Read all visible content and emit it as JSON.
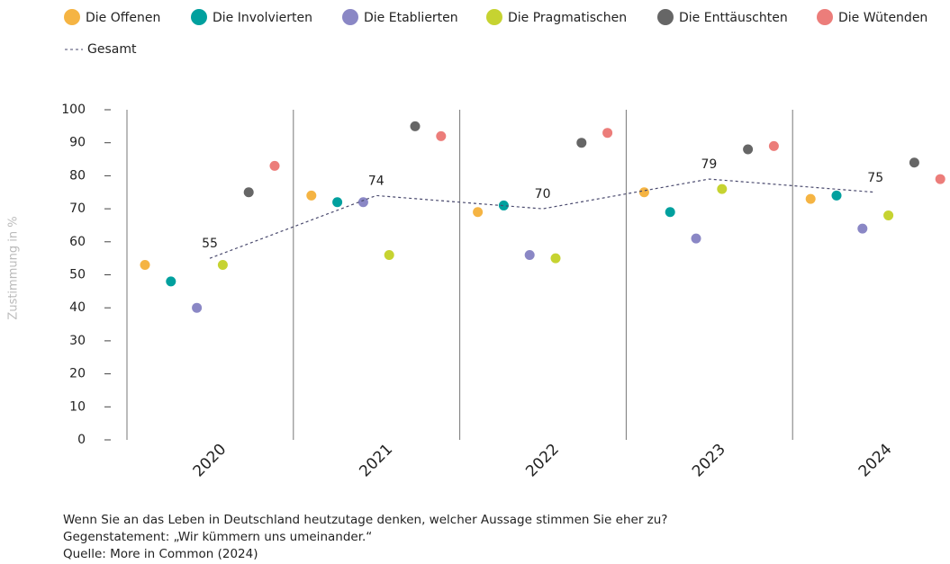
{
  "chart_data": {
    "type": "scatter",
    "y_label": "Zustimmung in %",
    "categories": [
      "2020",
      "2021",
      "2022",
      "2023",
      "2024"
    ],
    "series": [
      {
        "name": "Die Offenen",
        "color": "#f5b443",
        "values": [
          53,
          74,
          69,
          75,
          73
        ]
      },
      {
        "name": "Die Involvierten",
        "color": "#00a09e",
        "values": [
          48,
          72,
          71,
          69,
          74
        ]
      },
      {
        "name": "Die Etablierten",
        "color": "#8a87c5",
        "values": [
          40,
          72,
          56,
          61,
          64
        ]
      },
      {
        "name": "Die Pragmatischen",
        "color": "#c6d331",
        "values": [
          53,
          56,
          55,
          76,
          68
        ]
      },
      {
        "name": "Die Enttäuschten",
        "color": "#666666",
        "values": [
          75,
          95,
          90,
          88,
          84
        ]
      },
      {
        "name": "Die Wütenden",
        "color": "#ec7d7a",
        "values": [
          83,
          92,
          93,
          89,
          79
        ]
      },
      {
        "name": "Gesamt",
        "type": "line",
        "color": "#4a4a6e",
        "values": [
          55,
          74,
          70,
          79,
          75
        ]
      }
    ],
    "ylim": [
      0,
      100
    ],
    "yticks": [
      0,
      10,
      20,
      30,
      40,
      50,
      60,
      70,
      80,
      90,
      100
    ],
    "notes": [
      "Wenn Sie an das Leben in Deutschland heutzutage denken, welcher Aussage stimmen Sie eher zu?",
      "Gegenstatement: „Wir kümmern uns umeinander.“",
      "Quelle: More in Common (2024)"
    ]
  }
}
